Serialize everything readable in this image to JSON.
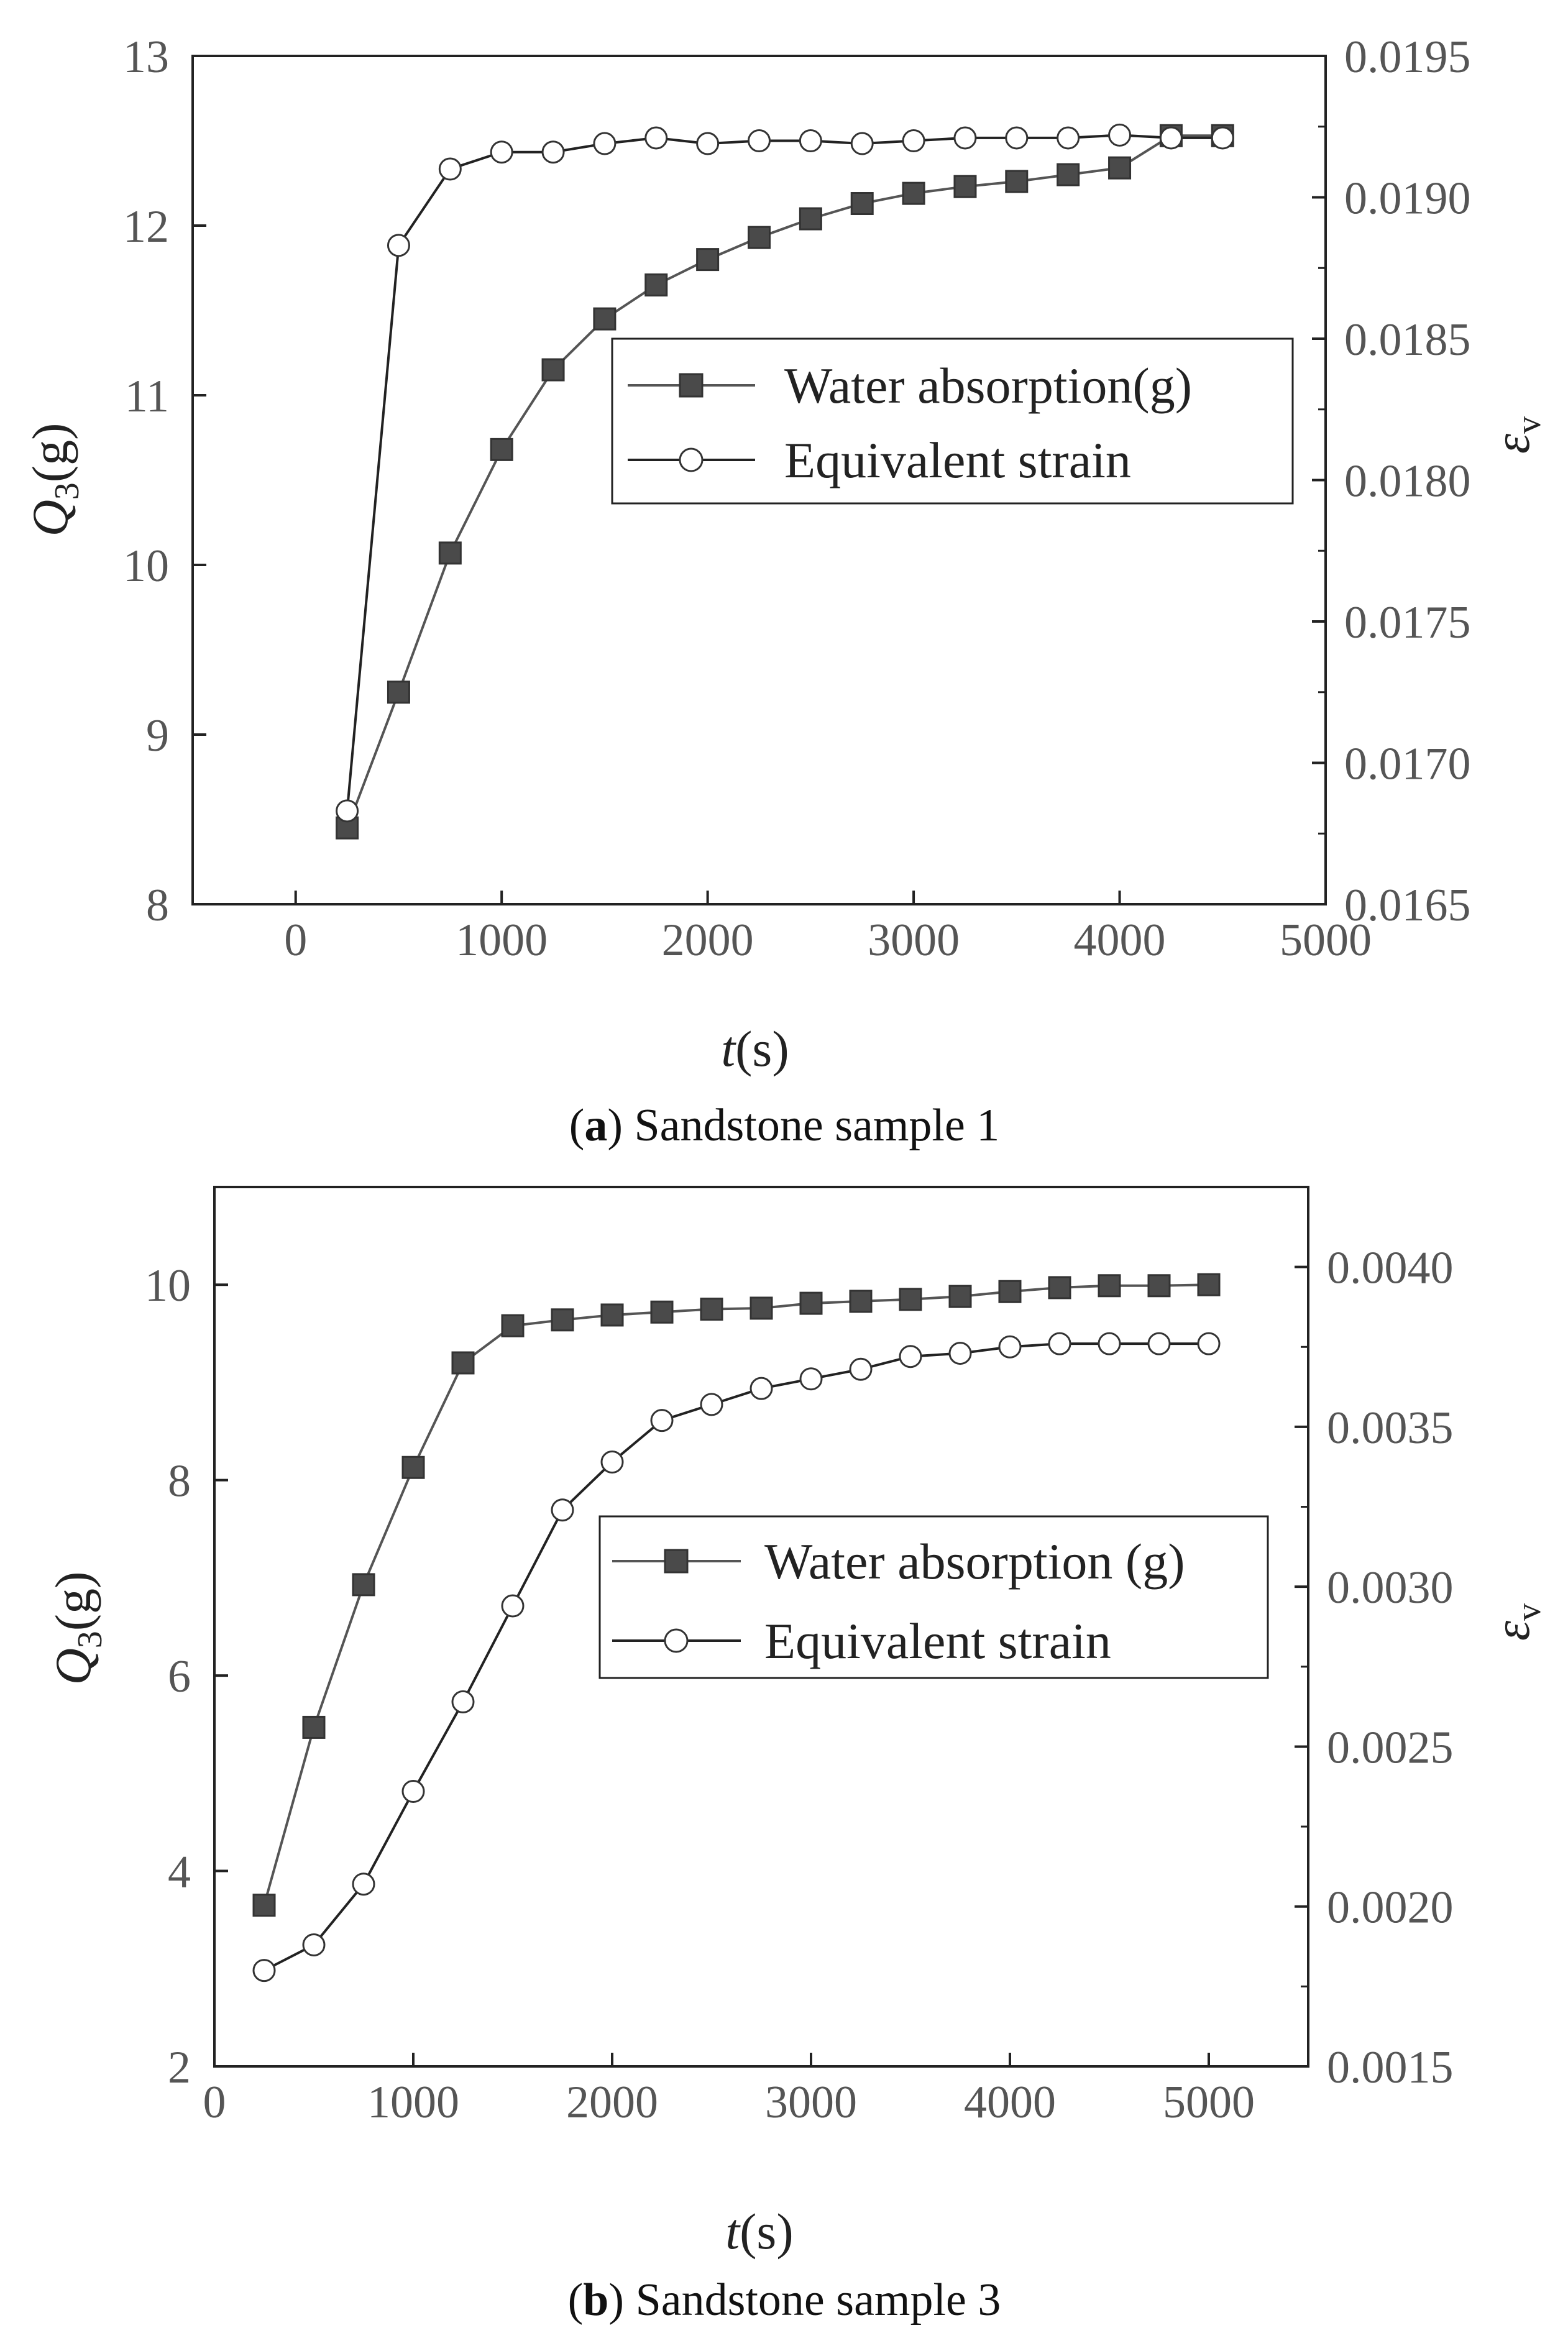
{
  "chart_data": [
    {
      "id": "a",
      "type": "line",
      "panel_letter": "a",
      "caption_text": "Sandstone sample 1",
      "x": [
        250,
        500,
        750,
        1000,
        1250,
        1500,
        1750,
        2000,
        2250,
        2500,
        2750,
        3000,
        3250,
        3500,
        3750,
        4000,
        4250,
        4500
      ],
      "xlim": [
        -500,
        5000
      ],
      "xticks": [
        0,
        1000,
        2000,
        3000,
        4000,
        5000
      ],
      "ylim_left": [
        8,
        13
      ],
      "yticks_left": [
        8,
        9,
        10,
        11,
        12,
        13
      ],
      "ylim_right": [
        0.0165,
        0.0195
      ],
      "yticks_right": [
        0.0165,
        0.017,
        0.0175,
        0.018,
        0.0185,
        0.019,
        0.0195
      ],
      "yticks_right_labels": [
        "0.0165",
        "0.0170",
        "0.0175",
        "0.0180",
        "0.0185",
        "0.0190",
        "0.0195"
      ],
      "xlabel": {
        "italic": "t",
        "rest": "(s)"
      },
      "ylabel_left": {
        "italic": "Q",
        "sub": "3",
        "rest": "(g)"
      },
      "ylabel_right": {
        "symbol": "ε",
        "sub": "v"
      },
      "legend_position": "right-middle",
      "series": [
        {
          "name": "Water absorption(g)",
          "axis": "left",
          "marker": "filled-square",
          "values": [
            8.45,
            9.25,
            10.07,
            10.68,
            11.15,
            11.45,
            11.65,
            11.8,
            11.93,
            12.04,
            12.13,
            12.19,
            12.23,
            12.26,
            12.3,
            12.34,
            12.53,
            12.53
          ]
        },
        {
          "name": "Equivalent strain",
          "axis": "right",
          "marker": "open-circle",
          "values": [
            0.01683,
            0.01883,
            0.0191,
            0.01916,
            0.01916,
            0.01919,
            0.01921,
            0.01919,
            0.0192,
            0.0192,
            0.01919,
            0.0192,
            0.01921,
            0.01921,
            0.01921,
            0.01922,
            0.01921,
            0.01921
          ]
        }
      ]
    },
    {
      "id": "b",
      "type": "line",
      "panel_letter": "b",
      "caption_text": "Sandstone sample 3",
      "x": [
        250,
        500,
        750,
        1000,
        1250,
        1500,
        1750,
        2000,
        2250,
        2500,
        2750,
        3000,
        3250,
        3500,
        3750,
        4000,
        4250,
        4500,
        4750,
        5000
      ],
      "xlim": [
        0,
        5500
      ],
      "xticks": [
        0,
        1000,
        2000,
        3000,
        4000,
        5000
      ],
      "ylim_left": [
        2,
        11
      ],
      "yticks_left": [
        2,
        4,
        6,
        8,
        10
      ],
      "ylim_right": [
        0.0015,
        0.00425
      ],
      "yticks_right": [
        0.0015,
        0.002,
        0.0025,
        0.003,
        0.0035,
        0.004
      ],
      "yticks_right_labels": [
        "0.0015",
        "0.0020",
        "0.0025",
        "0.0030",
        "0.0035",
        "0.0040"
      ],
      "xlabel": {
        "italic": "t",
        "rest": "(s)"
      },
      "ylabel_left": {
        "italic": "Q",
        "sub": "3",
        "rest": "(g)"
      },
      "ylabel_right": {
        "symbol": "ε",
        "sub": "v"
      },
      "legend_position": "right-middle",
      "series": [
        {
          "name": "Water absorption (g)",
          "axis": "left",
          "marker": "filled-square",
          "values": [
            3.65,
            5.47,
            6.93,
            8.13,
            9.2,
            9.58,
            9.64,
            9.69,
            9.72,
            9.75,
            9.76,
            9.81,
            9.83,
            9.85,
            9.88,
            9.93,
            9.97,
            9.99,
            9.99,
            10.0
          ]
        },
        {
          "name": "Equivalent strain",
          "axis": "right",
          "marker": "open-circle",
          "values": [
            0.0018,
            0.00188,
            0.00207,
            0.00236,
            0.00264,
            0.00294,
            0.00324,
            0.00339,
            0.00352,
            0.00357,
            0.00362,
            0.00365,
            0.00368,
            0.00372,
            0.00373,
            0.00375,
            0.00376,
            0.00376,
            0.00376,
            0.00376
          ]
        }
      ]
    }
  ]
}
